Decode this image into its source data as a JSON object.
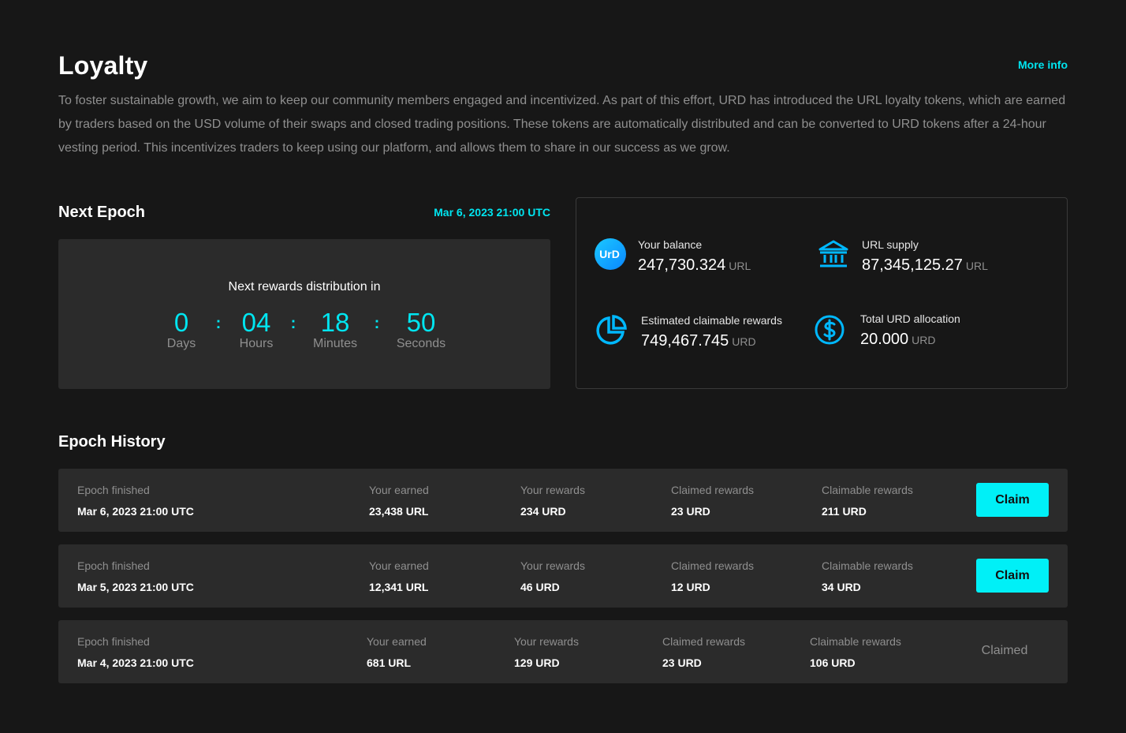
{
  "header": {
    "title": "Loyalty",
    "more_info": "More info",
    "intro": "To foster sustainable growth, we aim to keep our community members engaged and incentivized. As part of this effort, URD has introduced the URL loyalty tokens, which are earned by traders based on the USD volume of their swaps and closed trading positions. These tokens are automatically distributed and can be converted to URD tokens after a 24-hour vesting period. This incentivizes traders to keep using our platform, and allows them to share in our success as we grow."
  },
  "next_epoch": {
    "title": "Next Epoch",
    "date": "Mar 6, 2023 21:00 UTC",
    "countdown_label": "Next rewards distribution in",
    "units": [
      {
        "value": "0",
        "label": "Days"
      },
      {
        "value": "04",
        "label": "Hours"
      },
      {
        "value": "18",
        "label": "Minutes"
      },
      {
        "value": "50",
        "label": "Seconds"
      }
    ],
    "separator": ":"
  },
  "stats": {
    "balance": {
      "label": "Your balance",
      "value": "247,730.324",
      "unit": "URL",
      "icon": "urd-logo-icon",
      "logo_text": "UrD"
    },
    "supply": {
      "label": "URL supply",
      "value": "87,345,125.27",
      "unit": "URL",
      "icon": "bank-icon"
    },
    "claimable": {
      "label": "Estimated claimable rewards",
      "value": "749,467.745",
      "unit": "URD",
      "icon": "pie-chart-icon"
    },
    "allocation": {
      "label": "Total URD allocation",
      "value": "20.000",
      "unit": "URD",
      "icon": "dollar-circle-icon"
    }
  },
  "history": {
    "title": "Epoch History",
    "labels": {
      "epoch": "Epoch finished",
      "earned": "Your earned",
      "rewards": "Your rewards",
      "claimed": "Claimed rewards",
      "claimable": "Claimable rewards"
    },
    "claim_label": "Claim",
    "claimed_label": "Claimed",
    "rows": [
      {
        "date": "Mar 6, 2023 21:00 UTC",
        "earned": "23,438 URL",
        "rewards": "234 URD",
        "claimed": "23 URD",
        "claimable": "211 URD"
      },
      {
        "date": "Mar 5, 2023 21:00 UTC",
        "earned": "12,341 URL",
        "rewards": "46 URD",
        "claimed": "12 URD",
        "claimable": "34 URD"
      },
      {
        "date": "Mar 4, 2023 21:00 UTC",
        "earned": "681 URL",
        "rewards": "129 URD",
        "claimed": "23 URD",
        "claimable": "106 URD"
      }
    ]
  },
  "colors": {
    "background": "#171717",
    "panel": "#2b2b2b",
    "accent": "#00e5f0",
    "muted_text": "#8f8f8f"
  }
}
